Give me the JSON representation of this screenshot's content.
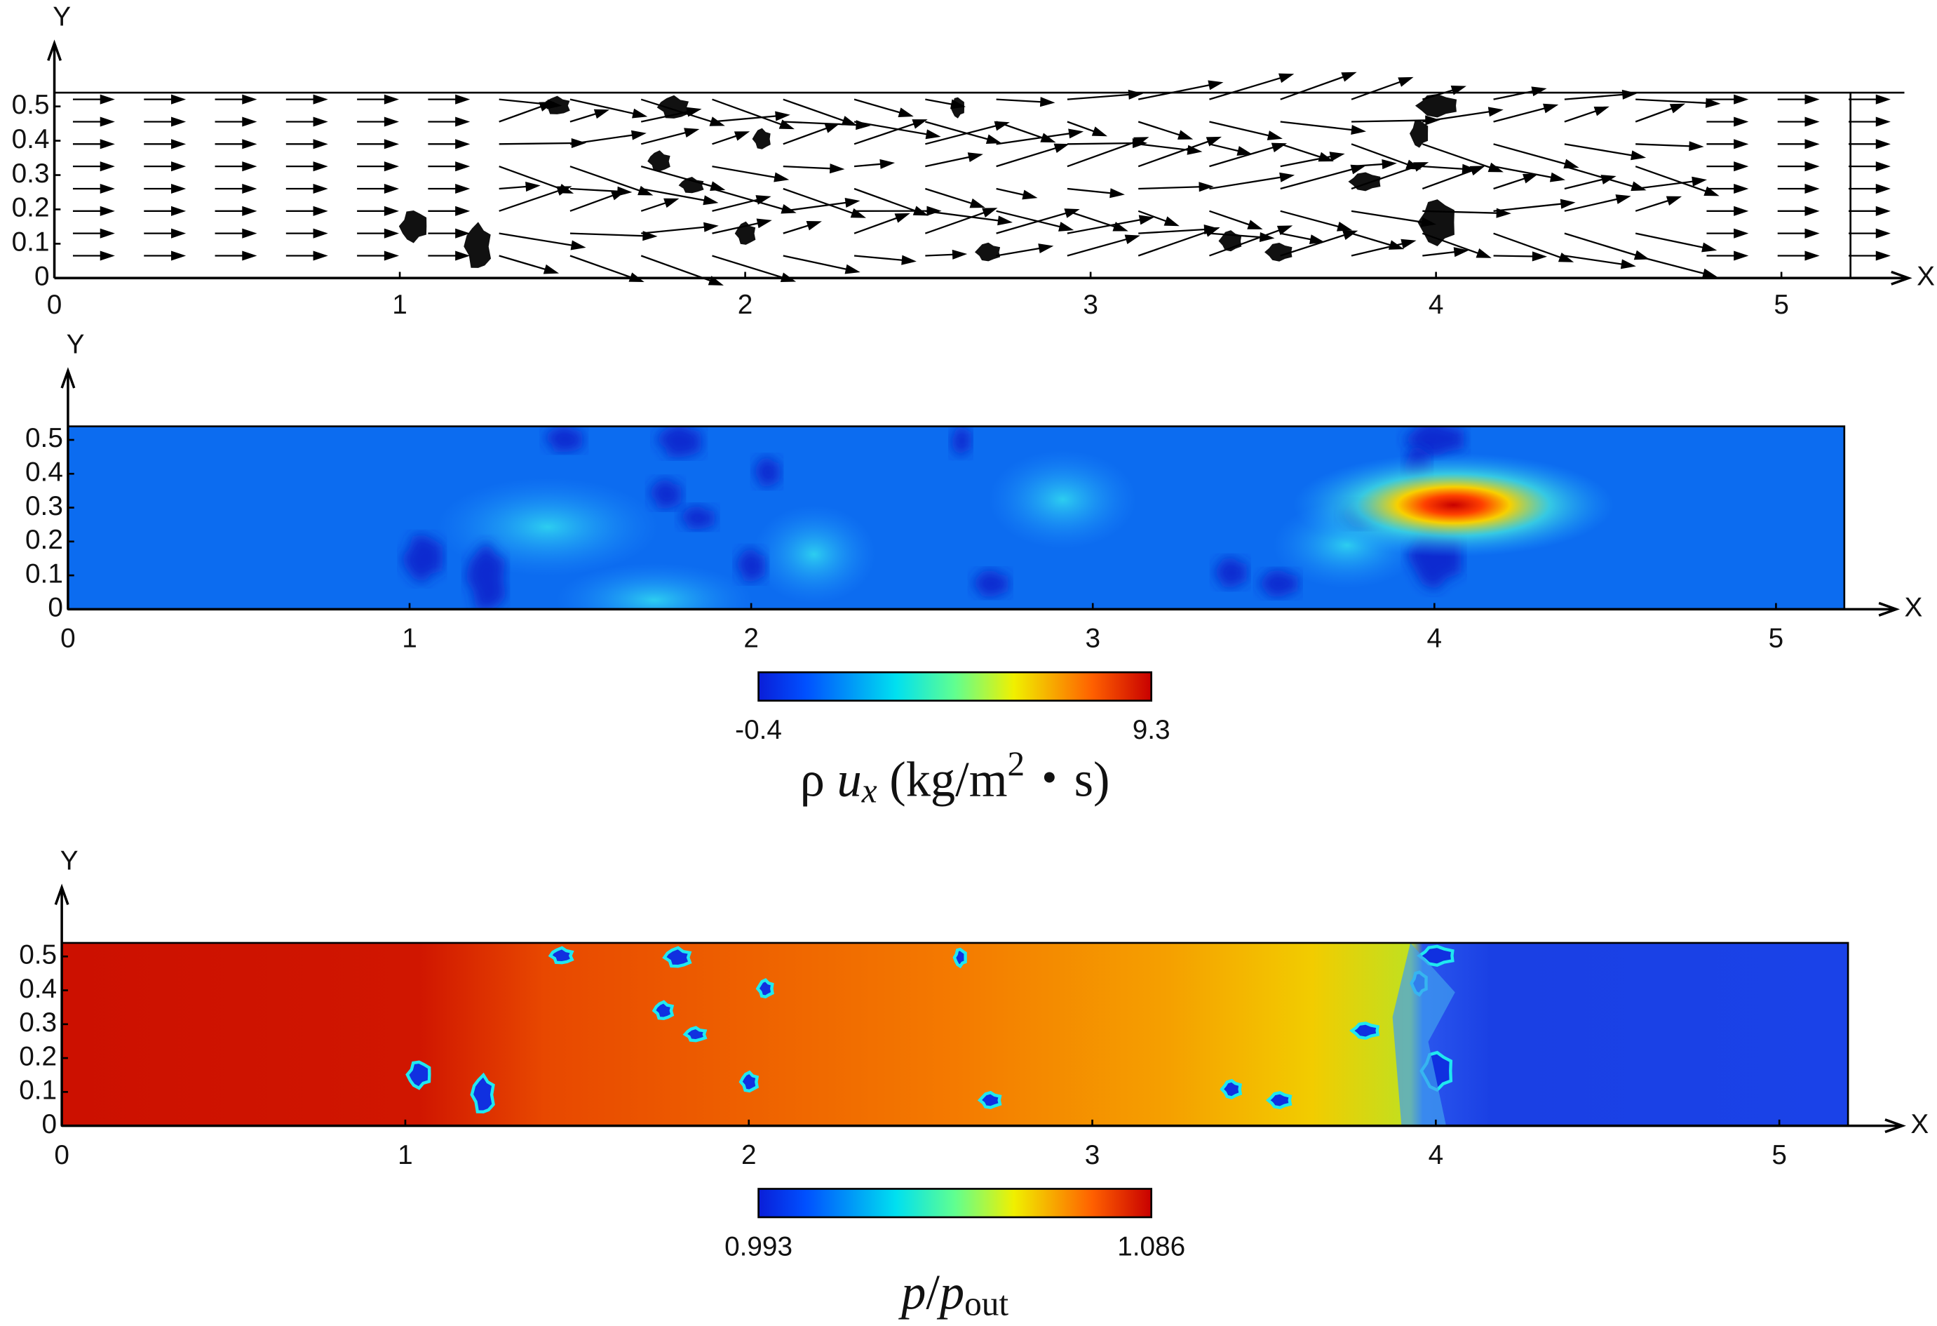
{
  "chart_data": [
    {
      "type": "vector",
      "xlabel": "X",
      "ylabel": "Y",
      "xlim": [
        0,
        5.2
      ],
      "ylim": [
        0,
        0.54
      ],
      "xticks": [
        0,
        1,
        2,
        3,
        4,
        5
      ],
      "yticks": [
        0,
        0.1,
        0.2,
        0.3,
        0.4,
        0.5
      ]
    },
    {
      "type": "heatmap",
      "xlabel": "X",
      "ylabel": "Y",
      "xlim": [
        0,
        5.2
      ],
      "ylim": [
        0,
        0.54
      ],
      "xticks": [
        0,
        1,
        2,
        3,
        4,
        5
      ],
      "yticks": [
        0,
        0.1,
        0.2,
        0.3,
        0.4,
        0.5
      ],
      "colorbar": {
        "range": [
          -0.4,
          9.3
        ],
        "ticks": [
          -0.4,
          9.3
        ],
        "colormap": "jet",
        "label": [
          "ρ ",
          "u",
          "x",
          " (kg/m",
          "2",
          "・s)"
        ]
      }
    },
    {
      "type": "heatmap",
      "xlabel": "X",
      "ylabel": "Y",
      "xlim": [
        0,
        5.2
      ],
      "ylim": [
        0,
        0.54
      ],
      "xticks": [
        0,
        1,
        2,
        3,
        4,
        5
      ],
      "yticks": [
        0,
        0.1,
        0.2,
        0.3,
        0.4,
        0.5
      ],
      "colorbar": {
        "range": [
          0.993,
          1.086
        ],
        "ticks": [
          0.993,
          1.086
        ],
        "colormap": "jet",
        "label": [
          "p",
          "/",
          "p",
          "out"
        ]
      }
    }
  ]
}
